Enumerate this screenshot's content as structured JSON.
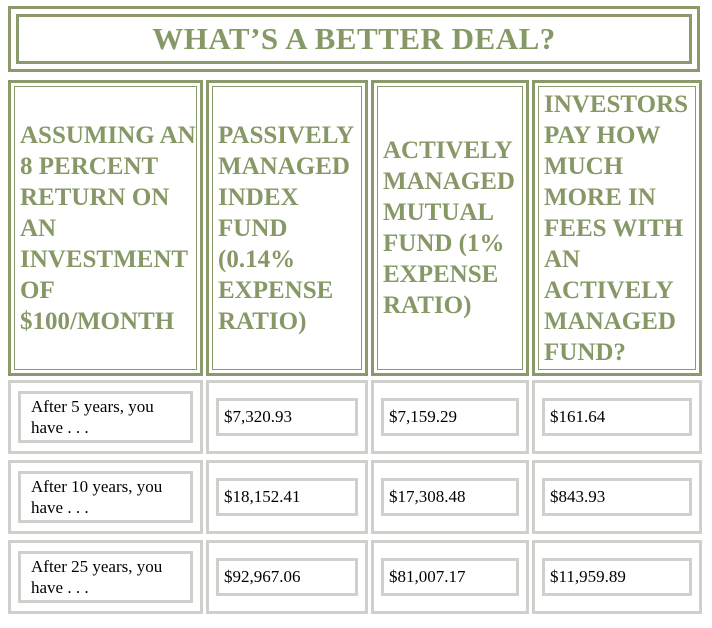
{
  "title": "WHAT’S A BETTER DEAL?",
  "headers": [
    "ASSUMING AN 8 PERCENT RETURN ON AN INVESTMENT OF $100/MONTH",
    "PASSIVELY MANAGED INDEX FUND (0.14% EXPENSE RATIO)",
    "ACTIVELY MANAGED MUTUAL FUND (1% EXPENSE RATIO)",
    "INVESTORS PAY HOW MUCH MORE IN FEES WITH AN ACTIVELY MANAGED FUND?"
  ],
  "rows": [
    {
      "label": "After 5 years, you have . . .",
      "passive": "$7,320.93",
      "active": "$7,159.29",
      "fees": "$161.64"
    },
    {
      "label": "After 10 years, you have . . .",
      "passive": "$18,152.41",
      "active": "$17,308.48",
      "fees": "$843.93"
    },
    {
      "label": "After 25 years, you have . . .",
      "passive": "$92,967.06",
      "active": "$81,007.17",
      "fees": "$11,959.89"
    }
  ],
  "colors": {
    "accent": "#869866",
    "border_light": "#cfcfcb"
  }
}
